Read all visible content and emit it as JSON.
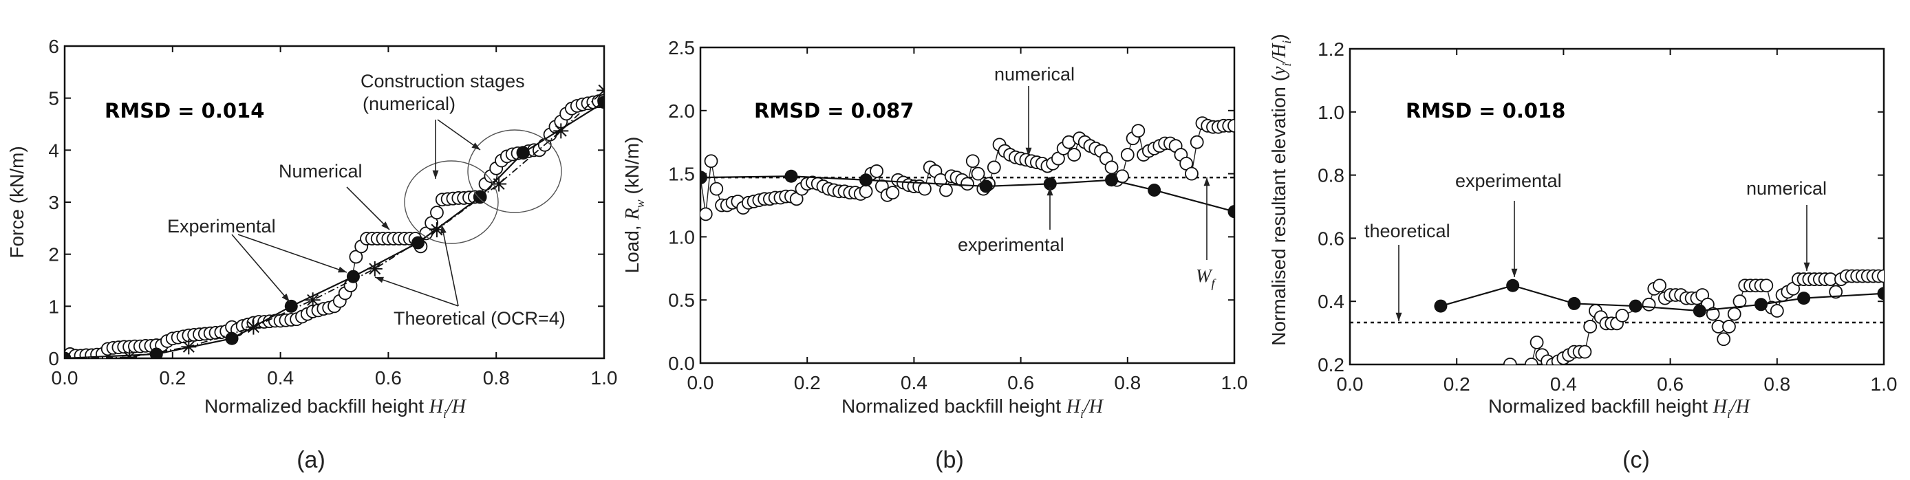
{
  "chart_data": [
    {
      "id": "a",
      "type": "scatter",
      "caption": "(a)",
      "rmsd": "RMSD = 0.014",
      "xlabel": "Normalized backfill height ",
      "xlabel_var": "H",
      "xlabel_sub": "i",
      "xlabel_tail": "/H",
      "ylabel": "Force (kN/m)",
      "xlim": [
        0,
        1.0
      ],
      "ylim": [
        0,
        6
      ],
      "xticks": [
        "0.0",
        "0.2",
        "0.4",
        "0.6",
        "0.8",
        "1.0"
      ],
      "yticks": [
        "0",
        "1",
        "2",
        "3",
        "4",
        "5",
        "6"
      ],
      "annotations": {
        "construction_1": "Construction stages",
        "construction_2": "(numerical)",
        "numerical": "Numerical",
        "experimental": "Experimental",
        "theoretical": "Theoretical (OCR=4)"
      },
      "series": [
        {
          "name": "Numerical",
          "marker": "open-circle",
          "x_start": 0,
          "x_step": 0.01,
          "y": [
            0.03,
            0.08,
            0.05,
            0.05,
            0.06,
            0.06,
            0.07,
            0.08,
            0.18,
            0.2,
            0.21,
            0.22,
            0.22,
            0.23,
            0.23,
            0.24,
            0.24,
            0.25,
            0.25,
            0.33,
            0.38,
            0.4,
            0.42,
            0.44,
            0.45,
            0.46,
            0.47,
            0.48,
            0.49,
            0.5,
            0.52,
            0.6,
            0.55,
            0.62,
            0.65,
            0.68,
            0.7,
            0.7,
            0.71,
            0.72,
            0.72,
            0.73,
            0.74,
            0.75,
            0.8,
            0.85,
            0.9,
            0.92,
            0.95,
            0.97,
            1.0,
            1.1,
            1.25,
            1.4,
            1.95,
            2.15,
            2.3,
            2.3,
            2.3,
            2.3,
            2.3,
            2.3,
            2.3,
            2.3,
            2.3,
            2.3,
            2.15,
            2.4,
            2.6,
            2.8,
            3.05,
            3.06,
            3.07,
            3.08,
            3.08,
            3.09,
            3.1,
            3.1,
            3.35,
            3.5,
            3.65,
            3.8,
            3.88,
            3.92,
            3.94,
            3.95,
            3.98,
            4.0,
            4.0,
            4.1,
            4.3,
            4.45,
            4.55,
            4.7,
            4.8,
            4.85,
            4.88,
            4.9,
            4.92,
            4.94,
            4.95
          ]
        },
        {
          "name": "Experimental",
          "marker": "filled-circle",
          "line": "solid",
          "x": [
            0,
            0.17,
            0.31,
            0.42,
            0.535,
            0.655,
            0.77,
            0.85,
            1.0
          ],
          "y": [
            0,
            0.08,
            0.38,
            1.0,
            1.57,
            2.22,
            3.1,
            3.95,
            4.92
          ]
        },
        {
          "name": "Theoretical (OCR=4)",
          "marker": "star",
          "line": "dash-dot",
          "x": [
            0,
            0.12,
            0.23,
            0.35,
            0.46,
            0.575,
            0.69,
            0.805,
            0.92,
            1.0
          ],
          "y": [
            0,
            0.02,
            0.22,
            0.6,
            1.12,
            1.72,
            2.47,
            3.35,
            4.37,
            5.15
          ]
        }
      ]
    },
    {
      "id": "b",
      "type": "scatter",
      "caption": "(b)",
      "rmsd": "RMSD = 0.087",
      "xlabel": "Normalized backfill height ",
      "xlabel_var": "H",
      "xlabel_sub": "i",
      "xlabel_tail": "/H",
      "ylabel": "Load, ",
      "ylabel_var": "R",
      "ylabel_sub": "w",
      "ylabel_tail": " (kN/m)",
      "xlim": [
        0,
        1.0
      ],
      "ylim": [
        0,
        2.5
      ],
      "xticks": [
        "0.0",
        "0.2",
        "0.4",
        "0.6",
        "0.8",
        "1.0"
      ],
      "yticks": [
        "0.0",
        "0.5",
        "1.0",
        "1.5",
        "2.0",
        "2.5"
      ],
      "annotations": {
        "numerical": "numerical",
        "experimental": "experimental",
        "wf_var": "W",
        "wf_sub": "f"
      },
      "reference_line": {
        "name": "Wf",
        "y": 1.47,
        "style": "dotted"
      },
      "series": [
        {
          "name": "numerical",
          "marker": "open-circle",
          "x_start": 0,
          "x_step": 0.01,
          "y": [
            1.47,
            1.18,
            1.6,
            1.38,
            1.25,
            1.25,
            1.27,
            1.28,
            1.23,
            1.27,
            1.28,
            1.29,
            1.3,
            1.3,
            1.31,
            1.31,
            1.32,
            1.32,
            1.3,
            1.38,
            1.42,
            1.43,
            1.42,
            1.4,
            1.38,
            1.37,
            1.36,
            1.36,
            1.35,
            1.35,
            1.34,
            1.36,
            1.5,
            1.52,
            1.4,
            1.33,
            1.35,
            1.45,
            1.43,
            1.41,
            1.4,
            1.4,
            1.38,
            1.55,
            1.52,
            1.45,
            1.37,
            1.48,
            1.47,
            1.45,
            1.42,
            1.6,
            1.5,
            1.38,
            1.42,
            1.55,
            1.73,
            1.68,
            1.65,
            1.63,
            1.62,
            1.61,
            1.6,
            1.59,
            1.58,
            1.56,
            1.58,
            1.62,
            1.7,
            1.75,
            1.65,
            1.78,
            1.75,
            1.72,
            1.7,
            1.68,
            1.62,
            1.55,
            1.45,
            1.48,
            1.65,
            1.78,
            1.84,
            1.65,
            1.68,
            1.7,
            1.72,
            1.74,
            1.74,
            1.72,
            1.65,
            1.58,
            1.5,
            1.75,
            1.9,
            1.88,
            1.87,
            1.87,
            1.88,
            1.88,
            1.88
          ]
        },
        {
          "name": "experimental",
          "marker": "filled-circle",
          "line": "solid",
          "x": [
            0,
            0.17,
            0.31,
            0.535,
            0.655,
            0.77,
            0.85,
            1.0
          ],
          "y": [
            1.47,
            1.48,
            1.45,
            1.4,
            1.42,
            1.45,
            1.37,
            1.2
          ]
        }
      ]
    },
    {
      "id": "c",
      "type": "scatter",
      "caption": "(c)",
      "rmsd": "RMSD = 0.018",
      "xlabel": "Normalized backfill height ",
      "xlabel_var": "H",
      "xlabel_sub": "i",
      "xlabel_tail": "/H",
      "ylabel": "Normalised resultant elevation (",
      "ylabel_var": "y",
      "ylabel_sub": "i",
      "ylabel_tail": "/H",
      "ylabel_sub2": "i",
      "ylabel_end": ")",
      "xlim": [
        0,
        1.0
      ],
      "ylim": [
        0.2,
        1.2
      ],
      "xticks": [
        "0.0",
        "0.2",
        "0.4",
        "0.6",
        "0.8",
        "1.0"
      ],
      "yticks": [
        "0.2",
        "0.4",
        "0.6",
        "0.8",
        "1.0",
        "1.2"
      ],
      "annotations": {
        "theoretical": "theoretical",
        "experimental": "experimental",
        "numerical": "numerical"
      },
      "reference_line": {
        "name": "theoretical",
        "y": 0.333,
        "style": "dotted"
      },
      "series": [
        {
          "name": "numerical",
          "marker": "open-circle",
          "x": [
            0.3,
            0.34,
            0.35,
            0.36,
            0.37,
            0.38,
            0.39,
            0.4,
            0.41,
            0.42,
            0.43,
            0.44,
            0.45,
            0.46,
            0.47,
            0.48,
            0.49,
            0.5,
            0.51,
            0.56,
            0.57,
            0.58,
            0.59,
            0.6,
            0.61,
            0.62,
            0.63,
            0.64,
            0.65,
            0.66,
            0.67,
            0.68,
            0.69,
            0.7,
            0.71,
            0.72,
            0.73,
            0.74,
            0.75,
            0.76,
            0.77,
            0.78,
            0.79,
            0.8,
            0.81,
            0.82,
            0.83,
            0.84,
            0.85,
            0.86,
            0.87,
            0.88,
            0.89,
            0.9,
            0.91,
            0.92,
            0.93,
            0.94,
            0.95,
            0.96,
            0.97,
            0.98,
            0.99,
            1.0
          ],
          "y": [
            0.2,
            0.2,
            0.27,
            0.23,
            0.21,
            0.2,
            0.21,
            0.22,
            0.23,
            0.24,
            0.24,
            0.24,
            0.32,
            0.37,
            0.35,
            0.33,
            0.33,
            0.33,
            0.355,
            0.39,
            0.44,
            0.45,
            0.41,
            0.42,
            0.42,
            0.42,
            0.41,
            0.41,
            0.41,
            0.42,
            0.39,
            0.36,
            0.32,
            0.28,
            0.32,
            0.36,
            0.4,
            0.45,
            0.45,
            0.45,
            0.45,
            0.45,
            0.38,
            0.37,
            0.42,
            0.43,
            0.44,
            0.47,
            0.47,
            0.47,
            0.47,
            0.47,
            0.47,
            0.47,
            0.43,
            0.47,
            0.48,
            0.48,
            0.48,
            0.48,
            0.48,
            0.48,
            0.48,
            0.48
          ]
        },
        {
          "name": "experimental",
          "marker": "filled-circle",
          "line": "solid",
          "x": [
            0.17,
            0.305,
            0.42,
            0.535,
            0.655,
            0.77,
            0.85,
            1.0
          ],
          "y": [
            0.385,
            0.45,
            0.393,
            0.385,
            0.37,
            0.39,
            0.41,
            0.425
          ]
        }
      ]
    }
  ]
}
